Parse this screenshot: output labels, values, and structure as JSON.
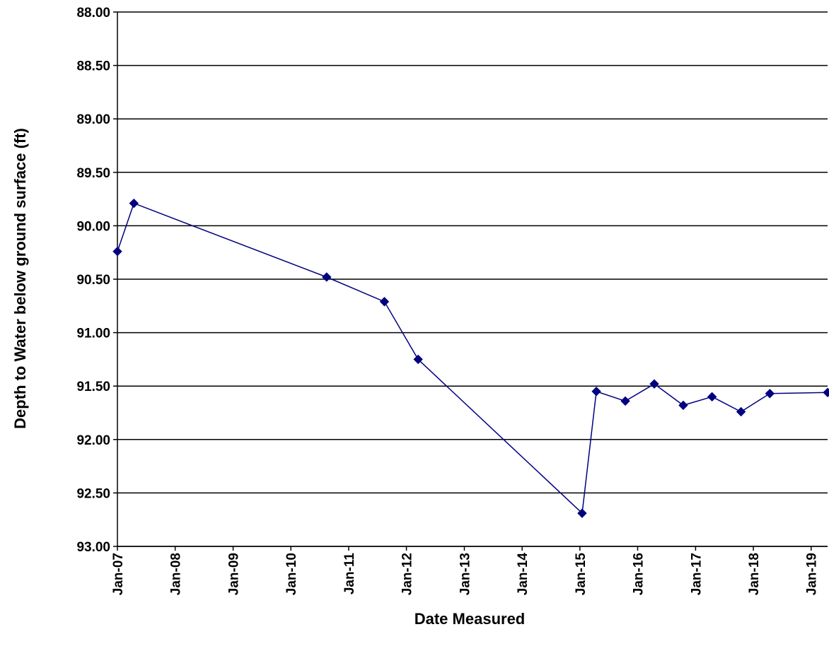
{
  "chart_data": {
    "type": "line",
    "title": "",
    "xlabel": "Date Measured",
    "ylabel": "Depth to Water below ground surface (ft)",
    "y_inverted": true,
    "ylim": [
      88.0,
      93.0
    ],
    "xlim": [
      "2007-01-01",
      "2019-04-15"
    ],
    "grid": "horizontal",
    "legend": "none",
    "y_ticks": [
      "88.00",
      "88.50",
      "89.00",
      "89.50",
      "90.00",
      "90.50",
      "91.00",
      "91.50",
      "92.00",
      "92.50",
      "93.00"
    ],
    "x_ticks": [
      "Jan-07",
      "Jan-08",
      "Jan-09",
      "Jan-10",
      "Jan-11",
      "Jan-12",
      "Jan-13",
      "Jan-14",
      "Jan-15",
      "Jan-16",
      "Jan-17",
      "Jan-18",
      "Jan-19"
    ],
    "series": [
      {
        "color": "#000080",
        "marker": "diamond",
        "points": [
          {
            "x": "2007-01-01",
            "y": 90.24
          },
          {
            "x": "2007-04-15",
            "y": 89.79
          },
          {
            "x": "2010-08-15",
            "y": 90.48
          },
          {
            "x": "2011-08-15",
            "y": 90.71
          },
          {
            "x": "2012-03-15",
            "y": 91.25
          },
          {
            "x": "2015-01-15",
            "y": 92.69
          },
          {
            "x": "2015-04-15",
            "y": 91.55
          },
          {
            "x": "2015-10-15",
            "y": 91.64
          },
          {
            "x": "2016-04-15",
            "y": 91.48
          },
          {
            "x": "2016-10-15",
            "y": 91.68
          },
          {
            "x": "2017-04-15",
            "y": 91.6
          },
          {
            "x": "2017-10-15",
            "y": 91.74
          },
          {
            "x": "2018-04-15",
            "y": 91.57
          },
          {
            "x": "2019-04-15",
            "y": 91.56
          }
        ]
      }
    ]
  }
}
